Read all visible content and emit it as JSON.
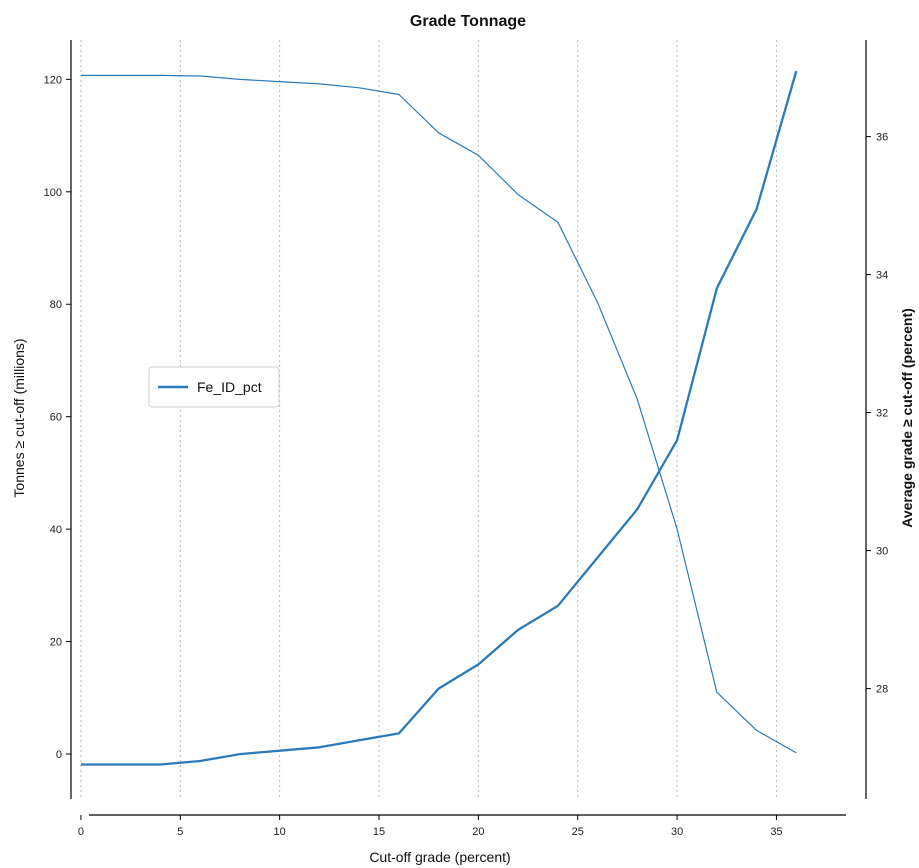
{
  "chart_data": {
    "type": "line",
    "title": "Grade Tonnage",
    "xlabel": "Cut-off grade (percent)",
    "ylabel": "Tonnes ≥ cut-off (millions)",
    "y2label": "Average grade ≥ cut-off (percent)",
    "xlim": [
      -0.5,
      38.5
    ],
    "ylim": [
      -8,
      127
    ],
    "y2lim": [
      26.4,
      37.4
    ],
    "xticks": [
      0,
      5,
      10,
      15,
      20,
      25,
      30,
      35
    ],
    "yticks": [
      0,
      20,
      40,
      60,
      80,
      100,
      120
    ],
    "y2ticks": [
      28,
      30,
      32,
      34,
      36
    ],
    "grid": "vertical-dotted",
    "legend": {
      "placement": "center-left",
      "entries": [
        "Fe_ID_pct"
      ]
    },
    "series": [
      {
        "name": "Fe_ID_pct",
        "axis": "left",
        "x": [
          0,
          2,
          4,
          6,
          8,
          10,
          12,
          14,
          16,
          18,
          20,
          22,
          24,
          26,
          28,
          30,
          32,
          34,
          36
        ],
        "values": [
          120.7,
          120.7,
          120.7,
          120.6,
          120.0,
          119.6,
          119.2,
          118.5,
          117.3,
          110.5,
          106.5,
          99.5,
          94.6,
          80.3,
          63.1,
          40.0,
          11.0,
          4.2,
          0.2
        ]
      },
      {
        "axis": "right",
        "x": [
          0,
          2,
          4,
          6,
          8,
          10,
          12,
          14,
          16,
          18,
          20,
          22,
          24,
          26,
          28,
          30,
          32,
          34,
          36
        ],
        "values": [
          26.9,
          26.9,
          26.9,
          26.95,
          27.05,
          27.1,
          27.15,
          27.25,
          27.35,
          28.0,
          28.35,
          28.85,
          29.2,
          29.9,
          30.6,
          31.6,
          33.8,
          34.95,
          36.95
        ]
      }
    ],
    "colors": {
      "line": "#2b7bba",
      "grid": "#b8b8b8",
      "axis": "#000000"
    }
  }
}
